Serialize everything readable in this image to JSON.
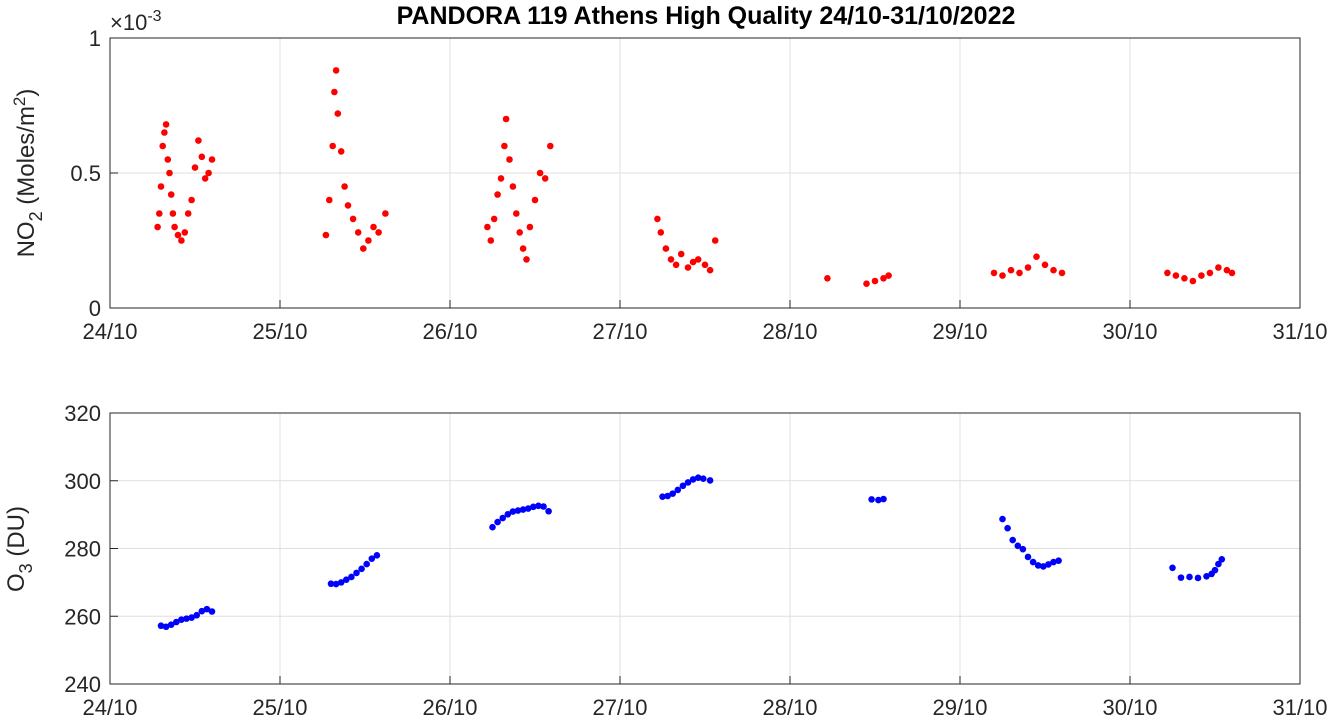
{
  "chart_data": [
    {
      "type": "scatter",
      "title": "PANDORA 119 Athens High Quality 24/10-31/10/2022",
      "ylabel_main": "NO",
      "ylabel_sub": "2",
      "ylabel_unit_main": " (Moles/m",
      "ylabel_unit_sup": "2",
      "ylabel_unit_end": ")",
      "exponent_base": "×10",
      "exponent_power": "-3",
      "xlim": [
        0,
        7
      ],
      "ylim": [
        0,
        1
      ],
      "xticks": [
        "24/10",
        "25/10",
        "26/10",
        "27/10",
        "28/10",
        "29/10",
        "30/10",
        "31/10"
      ],
      "yticks": [
        "0",
        "0.5",
        "1"
      ],
      "grid": true,
      "color": "#ff0000",
      "series": [
        {
          "points": [
            [
              0.28,
              0.3
            ],
            [
              0.29,
              0.35
            ],
            [
              0.3,
              0.45
            ],
            [
              0.31,
              0.6
            ],
            [
              0.32,
              0.65
            ],
            [
              0.33,
              0.68
            ],
            [
              0.34,
              0.55
            ],
            [
              0.35,
              0.5
            ],
            [
              0.36,
              0.42
            ],
            [
              0.37,
              0.35
            ],
            [
              0.38,
              0.3
            ],
            [
              0.4,
              0.27
            ],
            [
              0.42,
              0.25
            ],
            [
              0.44,
              0.28
            ],
            [
              0.46,
              0.35
            ],
            [
              0.48,
              0.4
            ],
            [
              0.5,
              0.52
            ],
            [
              0.52,
              0.62
            ],
            [
              0.54,
              0.56
            ],
            [
              0.56,
              0.48
            ],
            [
              0.58,
              0.5
            ],
            [
              0.6,
              0.55
            ],
            [
              1.27,
              0.27
            ],
            [
              1.29,
              0.4
            ],
            [
              1.31,
              0.6
            ],
            [
              1.32,
              0.8
            ],
            [
              1.33,
              0.88
            ],
            [
              1.34,
              0.72
            ],
            [
              1.36,
              0.58
            ],
            [
              1.38,
              0.45
            ],
            [
              1.4,
              0.38
            ],
            [
              1.43,
              0.33
            ],
            [
              1.46,
              0.28
            ],
            [
              1.49,
              0.22
            ],
            [
              1.52,
              0.25
            ],
            [
              1.55,
              0.3
            ],
            [
              1.58,
              0.28
            ],
            [
              1.62,
              0.35
            ],
            [
              2.22,
              0.3
            ],
            [
              2.24,
              0.25
            ],
            [
              2.26,
              0.33
            ],
            [
              2.28,
              0.42
            ],
            [
              2.3,
              0.48
            ],
            [
              2.32,
              0.6
            ],
            [
              2.33,
              0.7
            ],
            [
              2.35,
              0.55
            ],
            [
              2.37,
              0.45
            ],
            [
              2.39,
              0.35
            ],
            [
              2.41,
              0.28
            ],
            [
              2.43,
              0.22
            ],
            [
              2.45,
              0.18
            ],
            [
              2.47,
              0.3
            ],
            [
              2.5,
              0.4
            ],
            [
              2.53,
              0.5
            ],
            [
              2.56,
              0.48
            ],
            [
              2.59,
              0.6
            ],
            [
              3.22,
              0.33
            ],
            [
              3.24,
              0.28
            ],
            [
              3.27,
              0.22
            ],
            [
              3.3,
              0.18
            ],
            [
              3.33,
              0.16
            ],
            [
              3.36,
              0.2
            ],
            [
              3.4,
              0.15
            ],
            [
              3.43,
              0.17
            ],
            [
              3.46,
              0.18
            ],
            [
              3.5,
              0.16
            ],
            [
              3.53,
              0.14
            ],
            [
              3.56,
              0.25
            ],
            [
              4.22,
              0.11
            ],
            [
              4.45,
              0.09
            ],
            [
              4.5,
              0.1
            ],
            [
              4.55,
              0.11
            ],
            [
              4.58,
              0.12
            ],
            [
              5.2,
              0.13
            ],
            [
              5.25,
              0.12
            ],
            [
              5.3,
              0.14
            ],
            [
              5.35,
              0.13
            ],
            [
              5.4,
              0.15
            ],
            [
              5.45,
              0.19
            ],
            [
              5.5,
              0.16
            ],
            [
              5.55,
              0.14
            ],
            [
              5.6,
              0.13
            ],
            [
              6.22,
              0.13
            ],
            [
              6.27,
              0.12
            ],
            [
              6.32,
              0.11
            ],
            [
              6.37,
              0.1
            ],
            [
              6.42,
              0.12
            ],
            [
              6.47,
              0.13
            ],
            [
              6.52,
              0.15
            ],
            [
              6.57,
              0.14
            ],
            [
              6.6,
              0.13
            ]
          ]
        }
      ]
    },
    {
      "type": "scatter",
      "ylabel_main": "O",
      "ylabel_sub": "3",
      "ylabel_unit_main": " (DU)",
      "xlim": [
        0,
        7
      ],
      "ylim": [
        240,
        320
      ],
      "xticks": [
        "24/10",
        "25/10",
        "26/10",
        "27/10",
        "28/10",
        "29/10",
        "30/10",
        "31/10"
      ],
      "yticks": [
        "240",
        "260",
        "280",
        "300",
        "320"
      ],
      "grid": true,
      "color": "#0000ff",
      "series": [
        {
          "points": [
            [
              0.3,
              257.2
            ],
            [
              0.33,
              256.9
            ],
            [
              0.36,
              257.5
            ],
            [
              0.39,
              258.3
            ],
            [
              0.42,
              259.0
            ],
            [
              0.45,
              259.3
            ],
            [
              0.48,
              259.6
            ],
            [
              0.51,
              260.3
            ],
            [
              0.54,
              261.5
            ],
            [
              0.57,
              262.1
            ],
            [
              0.6,
              261.4
            ],
            [
              1.3,
              269.6
            ],
            [
              1.33,
              269.5
            ],
            [
              1.36,
              270.0
            ],
            [
              1.39,
              270.8
            ],
            [
              1.42,
              271.6
            ],
            [
              1.45,
              272.8
            ],
            [
              1.48,
              274.0
            ],
            [
              1.51,
              275.4
            ],
            [
              1.54,
              277.0
            ],
            [
              1.57,
              278.0
            ],
            [
              2.25,
              286.3
            ],
            [
              2.28,
              287.8
            ],
            [
              2.31,
              289.0
            ],
            [
              2.34,
              290.1
            ],
            [
              2.37,
              290.9
            ],
            [
              2.4,
              291.2
            ],
            [
              2.43,
              291.5
            ],
            [
              2.46,
              291.8
            ],
            [
              2.49,
              292.3
            ],
            [
              2.52,
              292.6
            ],
            [
              2.55,
              292.4
            ],
            [
              2.58,
              291.0
            ],
            [
              3.25,
              295.3
            ],
            [
              3.28,
              295.5
            ],
            [
              3.31,
              296.2
            ],
            [
              3.34,
              297.3
            ],
            [
              3.37,
              298.5
            ],
            [
              3.4,
              299.5
            ],
            [
              3.43,
              300.4
            ],
            [
              3.46,
              300.9
            ],
            [
              3.49,
              300.6
            ],
            [
              3.53,
              300.1
            ],
            [
              4.48,
              294.5
            ],
            [
              4.52,
              294.3
            ],
            [
              4.55,
              294.6
            ],
            [
              5.25,
              288.7
            ],
            [
              5.28,
              286.0
            ],
            [
              5.31,
              282.5
            ],
            [
              5.34,
              280.8
            ],
            [
              5.37,
              279.8
            ],
            [
              5.4,
              277.5
            ],
            [
              5.43,
              276.0
            ],
            [
              5.46,
              275.0
            ],
            [
              5.49,
              274.7
            ],
            [
              5.52,
              275.3
            ],
            [
              5.55,
              276.0
            ],
            [
              5.58,
              276.4
            ],
            [
              6.25,
              274.3
            ],
            [
              6.3,
              271.4
            ],
            [
              6.35,
              271.6
            ],
            [
              6.4,
              271.3
            ],
            [
              6.45,
              271.8
            ],
            [
              6.48,
              272.5
            ],
            [
              6.5,
              273.6
            ],
            [
              6.52,
              275.4
            ],
            [
              6.54,
              276.8
            ]
          ]
        }
      ]
    }
  ]
}
